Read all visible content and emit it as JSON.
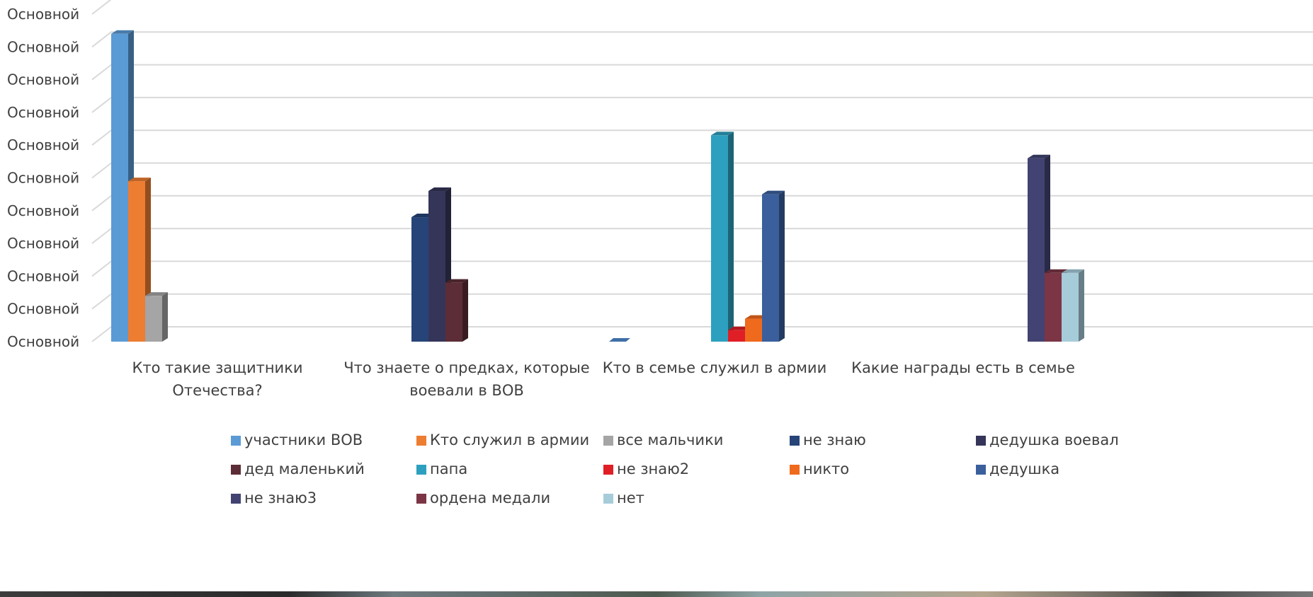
{
  "chart_data": {
    "type": "bar",
    "title": "",
    "xlabel": "",
    "ylabel": "",
    "ylim": [
      0,
      10
    ],
    "y_tick_labels": [
      "Основной",
      "Основной",
      "Основной",
      "Основной",
      "Основной",
      "Основной",
      "Основной",
      "Основной",
      "Основной",
      "Основной",
      "Основной"
    ],
    "grid": true,
    "legend_position": "bottom",
    "categories": [
      [
        "Кто такие защитники",
        "Отечества?"
      ],
      [
        "Что знаете о предках, которые",
        "воевали в ВОВ"
      ],
      [
        "Кто в семье служил в армии"
      ],
      [
        "Какие награды есть в семье"
      ]
    ],
    "series": [
      {
        "name": "участники ВОВ",
        "color": "#5B9BD5",
        "values": [
          9.4,
          null,
          null,
          null
        ]
      },
      {
        "name": "Кто служил в армии",
        "color": "#ED7D31",
        "values": [
          4.9,
          null,
          null,
          null
        ]
      },
      {
        "name": "все мальчики",
        "color": "#A5A5A5",
        "values": [
          1.4,
          null,
          null,
          null
        ]
      },
      {
        "name": "не знаю",
        "color": "#264478",
        "values": [
          null,
          3.8,
          null,
          null
        ]
      },
      {
        "name": "дедушка воевал",
        "color": "#353559",
        "values": [
          null,
          4.6,
          null,
          null
        ]
      },
      {
        "name": "дед маленький",
        "color": "#5C2D36",
        "values": [
          null,
          1.8,
          null,
          null
        ]
      },
      {
        "name": "папа",
        "color": "#2EA0BF",
        "values": [
          null,
          null,
          6.3,
          null
        ]
      },
      {
        "name": "не знаю2",
        "color": "#E01E26",
        "values": [
          null,
          null,
          0.35,
          null
        ]
      },
      {
        "name": "никто",
        "color": "#EF6A1D",
        "values": [
          null,
          null,
          0.7,
          null
        ]
      },
      {
        "name": "дедушка",
        "color": "#3A5F9C",
        "values": [
          null,
          null,
          4.5,
          null
        ]
      },
      {
        "name": "не знаю3",
        "color": "#424372",
        "values": [
          null,
          null,
          null,
          5.6
        ]
      },
      {
        "name": "ордена медали",
        "color": "#7B3545",
        "values": [
          null,
          null,
          null,
          2.1
        ]
      },
      {
        "name": "нет",
        "color": "#A6CCDA",
        "values": [
          null,
          null,
          null,
          2.1
        ]
      }
    ]
  }
}
